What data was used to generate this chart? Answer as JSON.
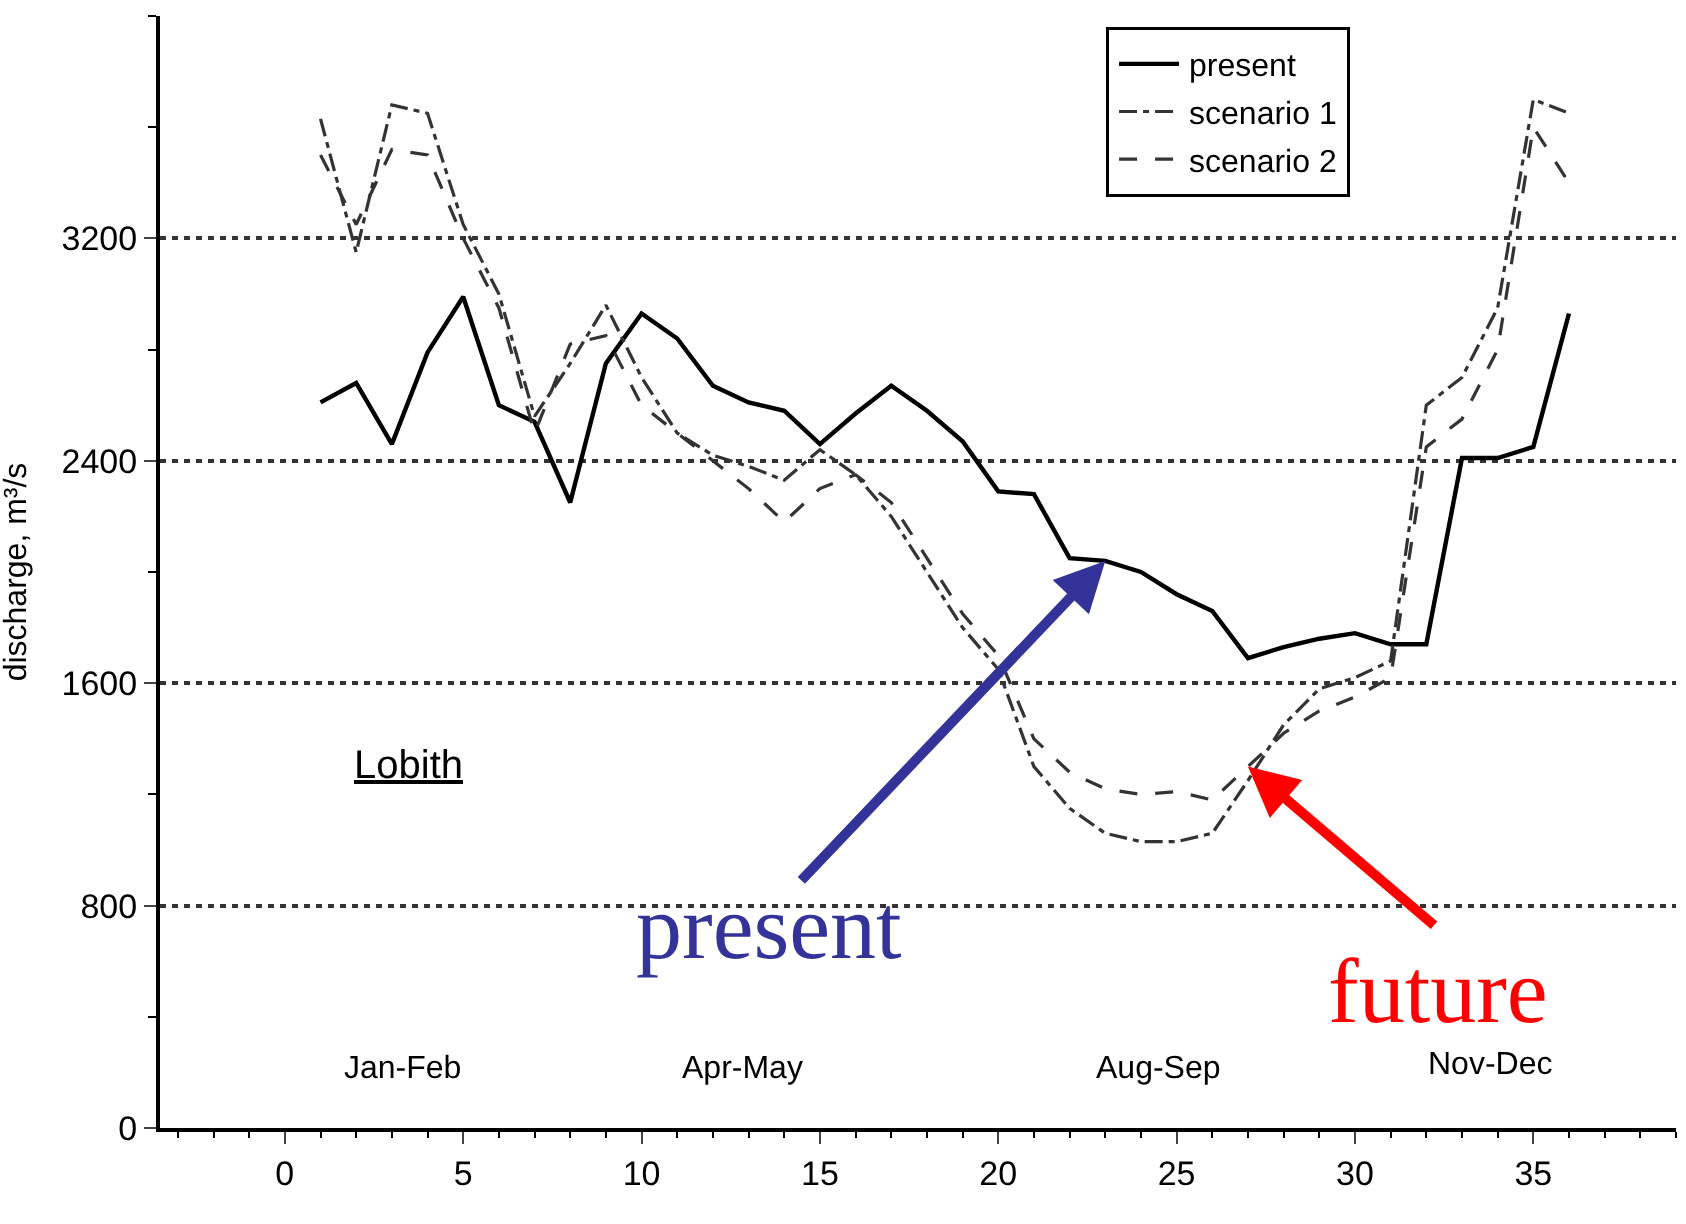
{
  "chart_data": {
    "type": "line",
    "ylabel": "discharge, m³/s",
    "x": [
      1,
      2,
      3,
      4,
      5,
      6,
      7,
      8,
      9,
      10,
      11,
      12,
      13,
      14,
      15,
      16,
      17,
      18,
      19,
      20,
      21,
      22,
      23,
      24,
      25,
      26,
      27,
      28,
      29,
      30,
      31,
      32,
      33,
      34,
      35,
      36
    ],
    "series": [
      {
        "name": "present",
        "color": "#000000",
        "line_style": "solid",
        "values": [
          2610,
          2680,
          2460,
          2790,
          2990,
          2600,
          2540,
          2250,
          2750,
          2930,
          2840,
          2670,
          2610,
          2580,
          2460,
          2570,
          2670,
          2580,
          2470,
          2290,
          2280,
          2050,
          2040,
          2000,
          1920,
          1860,
          1690,
          1730,
          1760,
          1780,
          1740,
          1740,
          2410,
          2410,
          2450,
          2930
        ]
      },
      {
        "name": "scenario 1",
        "color": "#333333",
        "line_style": "dashdot",
        "values": [
          3630,
          3150,
          3680,
          3650,
          3250,
          3000,
          2560,
          2750,
          2960,
          2700,
          2500,
          2420,
          2380,
          2330,
          2440,
          2350,
          2200,
          2000,
          1800,
          1650,
          1300,
          1150,
          1060,
          1030,
          1030,
          1060,
          1250,
          1450,
          1580,
          1620,
          1680,
          2600,
          2700,
          2950,
          3700,
          3650
        ]
      },
      {
        "name": "scenario 2",
        "color": "#333333",
        "line_style": "dashed",
        "values": [
          3500,
          3250,
          3520,
          3500,
          3200,
          2950,
          2500,
          2820,
          2850,
          2600,
          2500,
          2400,
          2300,
          2180,
          2300,
          2350,
          2250,
          2050,
          1850,
          1700,
          1400,
          1280,
          1220,
          1200,
          1210,
          1180,
          1300,
          1420,
          1500,
          1550,
          1620,
          2450,
          2550,
          2800,
          3600,
          3400
        ]
      }
    ],
    "xlim": [
      -3.5,
      39
    ],
    "xticks": [
      0,
      5,
      10,
      15,
      20,
      25,
      30,
      35
    ],
    "ylim": [
      0,
      4000
    ],
    "yticks": [
      0,
      800,
      1600,
      2400,
      3200
    ],
    "grid": "y",
    "legend": "top right",
    "annotations": [
      "Lobith",
      "Jan-Feb",
      "Apr-May",
      "Aug-Sep",
      "Nov-Dec",
      {
        "text": "present",
        "x": 23,
        "y": 2040
      },
      {
        "text": "future",
        "x": 27,
        "y": 1300
      }
    ]
  }
}
